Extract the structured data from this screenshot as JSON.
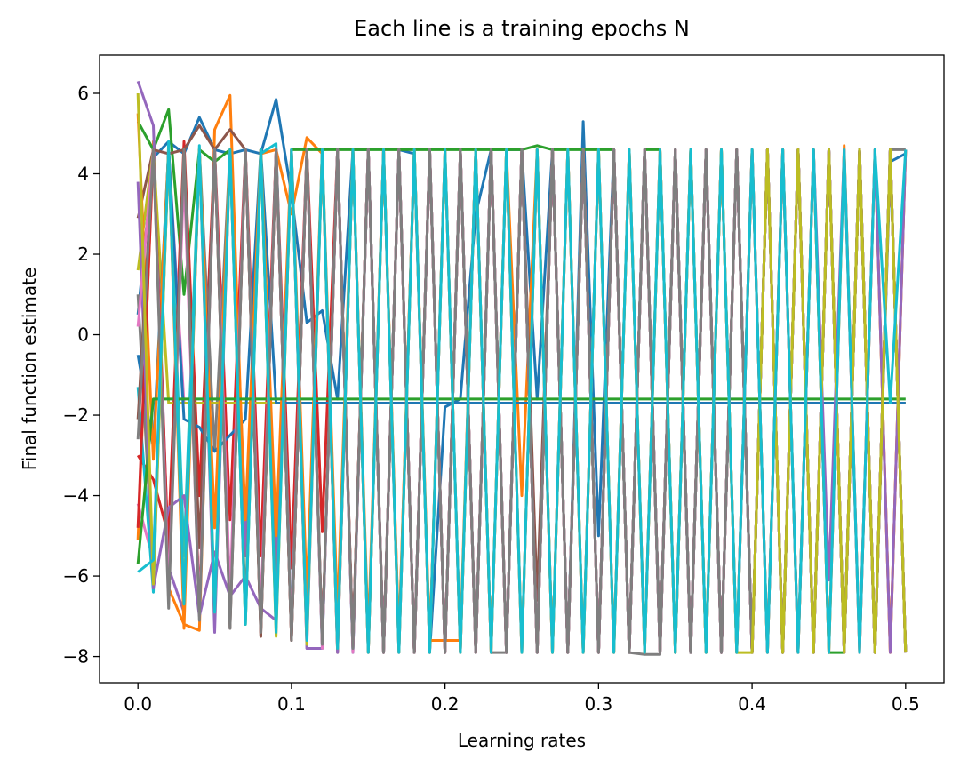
{
  "chart_data": {
    "type": "line",
    "title": "Each line is a training epochs N",
    "xlabel": "Learning rates",
    "ylabel": "Final function estimate",
    "xlim": [
      -0.025,
      0.525
    ],
    "ylim": [
      -8.65,
      6.95
    ],
    "xticks": [
      {
        "value": 0.0,
        "label": "0.0"
      },
      {
        "value": 0.1,
        "label": "0.1"
      },
      {
        "value": 0.2,
        "label": "0.2"
      },
      {
        "value": 0.3,
        "label": "0.3"
      },
      {
        "value": 0.4,
        "label": "0.4"
      },
      {
        "value": 0.5,
        "label": "0.5"
      }
    ],
    "yticks": [
      {
        "value": 6,
        "label": "6"
      },
      {
        "value": 4,
        "label": "4"
      },
      {
        "value": 2,
        "label": "2"
      },
      {
        "value": 0,
        "label": "0"
      },
      {
        "value": -2,
        "label": "−2"
      },
      {
        "value": -4,
        "label": "−4"
      },
      {
        "value": -6,
        "label": "−6"
      },
      {
        "value": -8,
        "label": "−8"
      }
    ],
    "grid": false,
    "legend": "none",
    "x": [
      0.0,
      0.01,
      0.02,
      0.03,
      0.04,
      0.05,
      0.06,
      0.07,
      0.08,
      0.09,
      0.1,
      0.11,
      0.12,
      0.13,
      0.14,
      0.15,
      0.16,
      0.17,
      0.18,
      0.19,
      0.2,
      0.21,
      0.22,
      0.23,
      0.24,
      0.25,
      0.26,
      0.27,
      0.28,
      0.29,
      0.3,
      0.31,
      0.32,
      0.33,
      0.34,
      0.35,
      0.36,
      0.37,
      0.38,
      0.39,
      0.4,
      0.41,
      0.42,
      0.43,
      0.44,
      0.45,
      0.46,
      0.47,
      0.48,
      0.49,
      0.5
    ],
    "series": [
      {
        "color": "#1f77b4",
        "values": [
          0.5,
          4.4,
          4.8,
          4.5,
          5.4,
          4.6,
          4.5,
          4.6,
          4.5,
          5.85,
          3.5,
          0.3,
          0.6,
          -1.6,
          4.6,
          4.6,
          -7.9,
          4.6,
          4.5,
          -7.9,
          -1.8,
          -1.6,
          3.0,
          4.6,
          4.6,
          4.6,
          -1.6,
          4.6,
          -7.9,
          5.3,
          -5.0,
          4.6,
          -7.9,
          4.6,
          -7.9,
          4.6,
          -7.9,
          4.6,
          -7.9,
          4.6,
          -7.9,
          4.6,
          -7.9,
          4.6,
          -7.9,
          4.6,
          -7.9,
          4.6,
          -7.9,
          4.3,
          4.5
        ]
      },
      {
        "color": "#ff7f0e",
        "values": [
          -5.1,
          4.8,
          -6.3,
          -7.2,
          -7.35,
          5.1,
          5.95,
          -5.2,
          4.5,
          4.6,
          3.0,
          4.9,
          4.5,
          -7.9,
          4.6,
          -7.9,
          4.6,
          -7.6,
          4.6,
          -7.6,
          -7.6,
          -7.6,
          4.6,
          -7.9,
          4.6,
          -4.0,
          4.6,
          -7.9,
          4.6,
          -7.9,
          4.6,
          -7.9,
          4.6,
          -7.9,
          4.6,
          -7.9,
          4.6,
          -7.9,
          4.6,
          -7.9,
          4.6,
          -7.9,
          4.6,
          -7.9,
          4.6,
          -7.9,
          4.7,
          -7.9,
          4.6,
          -7.9,
          4.6
        ]
      },
      {
        "color": "#2ca02c",
        "values": [
          5.3,
          4.6,
          5.6,
          1.0,
          4.6,
          4.3,
          4.6,
          -5.5,
          4.6,
          -7.3,
          4.6,
          4.6,
          4.6,
          4.6,
          4.6,
          4.6,
          4.6,
          4.6,
          4.6,
          4.6,
          4.6,
          4.6,
          4.6,
          4.6,
          4.6,
          4.6,
          4.7,
          4.6,
          4.6,
          4.6,
          4.6,
          4.6,
          -7.9,
          4.6,
          4.6,
          -7.9,
          4.6,
          -7.9,
          4.6,
          -7.9,
          4.6,
          -7.9,
          4.6,
          -7.9,
          4.6,
          -7.9,
          -7.9,
          4.6,
          -7.9,
          4.6,
          -7.9
        ]
      },
      {
        "color": "#d62728",
        "values": [
          -3.0,
          -3.6,
          -5.0,
          4.8,
          -4.0,
          4.6,
          -4.6,
          4.6,
          -5.5,
          4.6,
          -5.8,
          4.6,
          -4.9,
          4.6,
          -7.7,
          4.6,
          -7.9,
          4.6,
          -7.9,
          4.6,
          -7.9,
          4.6,
          -7.9,
          4.6,
          -7.9,
          4.6,
          -7.9,
          4.6,
          -7.9,
          4.6,
          -7.9,
          4.6,
          -7.9,
          4.6,
          -7.9,
          4.6,
          -7.9,
          4.6,
          -7.9,
          4.6,
          -7.9,
          4.6,
          -7.9,
          4.6,
          -7.9,
          4.6,
          -7.9,
          4.6,
          -7.9,
          4.6,
          -7.9
        ]
      },
      {
        "color": "#9467bd",
        "values": [
          6.3,
          5.2,
          -5.8,
          -6.9,
          4.6,
          -7.4,
          4.6,
          -5.5,
          4.6,
          -6.0,
          4.6,
          -7.8,
          -7.8,
          4.6,
          -7.9,
          4.6,
          -7.9,
          4.6,
          -7.9,
          4.6,
          -7.9,
          4.6,
          -7.9,
          4.6,
          -7.9,
          4.6,
          -7.9,
          4.6,
          -7.9,
          4.6,
          -7.9,
          4.6,
          -7.9,
          4.6,
          -7.9,
          4.6,
          -7.9,
          4.6,
          -7.9,
          4.6,
          -7.9,
          4.6,
          -7.9,
          4.6,
          -7.9,
          4.6,
          -7.9,
          4.6,
          -7.9,
          4.6,
          -7.9
        ]
      },
      {
        "color": "#8c564b",
        "values": [
          2.9,
          4.6,
          4.5,
          4.6,
          5.2,
          4.6,
          5.1,
          4.6,
          -7.5,
          4.6,
          -7.6,
          4.6,
          -7.6,
          4.6,
          -7.7,
          4.6,
          -7.8,
          4.6,
          -7.9,
          4.6,
          -7.9,
          4.6,
          -7.9,
          4.6,
          -7.9,
          4.6,
          -6.6,
          4.6,
          -7.9,
          4.6,
          -7.9,
          4.6,
          -7.9,
          4.6,
          -7.9,
          4.6,
          -7.9,
          4.6,
          -7.9,
          4.6,
          -7.9,
          4.6,
          -7.9,
          4.6,
          -7.9,
          4.6,
          -7.9,
          4.6,
          -7.9,
          4.6,
          -7.9
        ]
      },
      {
        "color": "#e377c2",
        "values": [
          -4.2,
          -5.6,
          4.6,
          -1.7,
          -1.7,
          -1.7,
          -1.7,
          -1.7,
          -1.7,
          -1.7,
          -1.7,
          -1.7,
          -1.7,
          -1.7,
          -1.7,
          -1.7,
          -1.7,
          -1.7,
          -1.7,
          -1.7,
          -1.7,
          -1.7,
          -1.7,
          -1.7,
          -1.7,
          -1.7,
          -1.7,
          -1.7,
          -1.7,
          -1.7,
          -1.7,
          -1.7,
          -1.7,
          -1.7,
          -1.7,
          -1.7,
          -1.7,
          -1.7,
          -1.7,
          -1.7,
          -1.7,
          -1.7,
          -1.7,
          -1.7,
          -1.7,
          -1.7,
          -1.7,
          -1.7,
          -1.7,
          -1.7,
          -1.7
        ]
      },
      {
        "color": "#7f7f7f",
        "values": [
          1.0,
          -6.0,
          4.6,
          -6.8,
          4.6,
          -2.9,
          4.6,
          -6.8,
          4.6,
          -7.0,
          4.6,
          -7.4,
          4.6,
          -7.9,
          4.6,
          -7.9,
          4.6,
          -7.9,
          4.6,
          -7.9,
          4.6,
          -7.9,
          4.6,
          -7.9,
          -7.9,
          4.6,
          -7.9,
          4.6,
          -7.9,
          4.6,
          -7.9,
          4.6,
          -7.9,
          -7.95,
          -7.95,
          4.6,
          -7.9,
          4.6,
          -7.9,
          4.6,
          -7.9,
          4.6,
          -7.9,
          4.6,
          -7.9,
          4.6,
          -7.9,
          4.6,
          -7.9,
          4.6,
          4.6
        ]
      },
      {
        "color": "#bcbd22",
        "values": [
          1.6,
          4.6,
          -1.7,
          -1.7,
          -1.7,
          -1.7,
          -1.7,
          -1.7,
          -1.7,
          -1.7,
          -1.7,
          -1.7,
          -1.7,
          -1.7,
          -1.7,
          -1.7,
          -1.7,
          -1.7,
          -1.7,
          -1.7,
          -1.7,
          -1.7,
          -1.7,
          -1.7,
          -1.7,
          -1.7,
          -1.7,
          -1.7,
          -1.7,
          -1.7,
          -1.7,
          -1.7,
          -1.7,
          -1.7,
          -1.7,
          -1.7,
          -1.7,
          -1.7,
          -1.7,
          -1.7,
          -1.7,
          -1.7,
          -1.7,
          -1.7,
          -1.7,
          -1.7,
          -1.7,
          -1.7,
          -1.7,
          -1.7,
          -1.7
        ]
      },
      {
        "color": "#17becf",
        "values": [
          -1.3,
          -6.4,
          4.8,
          -5.5,
          4.7,
          -6.7,
          4.6,
          -7.2,
          4.5,
          4.75,
          -7.3,
          4.6,
          -7.8,
          4.6,
          -7.9,
          4.6,
          -7.9,
          4.6,
          -7.9,
          4.6,
          -7.9,
          4.6,
          -7.9,
          4.6,
          -7.9,
          4.6,
          -7.9,
          4.6,
          -7.9,
          4.6,
          -7.9,
          4.6,
          -7.9,
          4.6,
          -7.9,
          4.6,
          -7.9,
          4.6,
          -7.9,
          4.6,
          -7.9,
          4.6,
          -7.9,
          4.6,
          -7.9,
          4.6,
          -7.9,
          4.6,
          -7.9,
          4.6,
          -7.9
        ]
      },
      {
        "color": "#1f77b4",
        "values": [
          -0.5,
          -2.8,
          4.6,
          -2.1,
          -2.3,
          -2.9,
          -2.5,
          -2.1,
          4.6,
          -1.7,
          -1.7,
          -1.7,
          -1.7,
          -1.7,
          -1.7,
          -1.7,
          -1.7,
          -1.7,
          -1.7,
          -1.7,
          -1.7,
          -1.7,
          -1.7,
          -1.7,
          -1.7,
          -1.7,
          -1.7,
          -1.7,
          -1.7,
          -1.7,
          -1.7,
          -1.7,
          -1.7,
          -1.7,
          -1.7,
          -1.7,
          -1.7,
          -1.7,
          -1.7,
          -1.7,
          -1.7,
          -1.7,
          -1.7,
          -1.7,
          -1.7,
          -1.7,
          -1.7,
          -1.7,
          -1.7,
          -1.7,
          -1.7
        ]
      },
      {
        "color": "#ff7f0e",
        "values": [
          5.5,
          -3.1,
          4.6,
          -7.3,
          4.6,
          -4.8,
          4.6,
          -4.6,
          4.6,
          -5.0,
          4.6,
          -6.5,
          4.6,
          -7.0,
          4.6,
          -7.5,
          4.6,
          -7.6,
          4.6,
          -7.8,
          4.6,
          -7.9,
          4.6,
          -7.9,
          4.6,
          -7.9,
          4.6,
          -7.9,
          4.6,
          -7.9,
          4.6,
          -7.9,
          4.6,
          -7.9,
          4.6,
          -7.9,
          4.6,
          -7.9,
          4.6,
          -7.9,
          4.6,
          -7.9,
          4.6,
          -7.9,
          4.6,
          -7.9,
          4.6,
          -7.9,
          4.6,
          -7.9,
          4.6
        ]
      },
      {
        "color": "#2ca02c",
        "values": [
          -5.7,
          -1.6,
          -1.6,
          -1.6,
          -1.6,
          -1.6,
          -1.6,
          -1.6,
          -1.6,
          -1.6,
          -1.6,
          -1.6,
          -1.6,
          -1.6,
          -1.6,
          -1.6,
          -1.6,
          -1.6,
          -1.6,
          -1.6,
          -1.6,
          -1.6,
          -1.6,
          -1.6,
          -1.6,
          -1.6,
          -1.6,
          -1.6,
          -1.6,
          -1.6,
          -1.6,
          -1.6,
          -1.6,
          -1.6,
          -1.6,
          -1.6,
          -1.6,
          -1.6,
          -1.6,
          -1.6,
          -1.6,
          -1.6,
          -1.6,
          -1.6,
          -1.6,
          -1.6,
          -1.6,
          -1.6,
          -1.6,
          -1.6,
          -1.6
        ]
      },
      {
        "color": "#d62728",
        "values": [
          -4.8,
          4.6,
          -5.6,
          4.6,
          -6.8,
          4.6,
          -7.1,
          4.6,
          -7.4,
          4.6,
          -7.6,
          4.6,
          -7.7,
          4.6,
          -7.8,
          4.6,
          -7.9,
          4.6,
          -7.9,
          4.6,
          -7.9,
          4.6,
          -7.9,
          4.6,
          -7.9,
          4.6,
          -7.9,
          4.6,
          -7.9,
          4.6,
          -7.9,
          4.6,
          -7.9,
          4.6,
          -7.9,
          4.6,
          -7.9,
          4.6,
          -7.9,
          4.6,
          -7.9,
          4.6,
          -7.9,
          4.6,
          -7.9,
          4.6,
          -7.9,
          4.6,
          -7.9,
          4.6,
          -7.9
        ]
      },
      {
        "color": "#9467bd",
        "values": [
          3.8,
          -6.3,
          -4.3,
          -4.0,
          -7.0,
          -5.4,
          -6.5,
          -6.0,
          -6.8,
          -7.1,
          4.6,
          -7.8,
          4.6,
          -7.9,
          4.6,
          -7.9,
          4.6,
          -7.9,
          4.6,
          -7.9,
          4.6,
          -7.9,
          4.6,
          -7.9,
          4.6,
          -7.9,
          4.6,
          -7.9,
          4.6,
          -7.9,
          4.6,
          -7.9,
          4.6,
          -7.9,
          4.6,
          -7.9,
          4.6,
          -7.9,
          4.6,
          -7.9,
          4.6,
          -7.9,
          4.6,
          -7.9,
          4.6,
          -6.1,
          4.6,
          -7.9,
          4.6,
          -7.9,
          4.6
        ]
      },
      {
        "color": "#8c564b",
        "values": [
          -2.1,
          4.6,
          -6.2,
          4.6,
          -5.3,
          4.6,
          -7.3,
          4.6,
          -7.5,
          4.6,
          -7.6,
          4.6,
          -7.7,
          4.6,
          -7.8,
          4.6,
          -7.9,
          4.6,
          -7.9,
          4.6,
          -7.9,
          4.6,
          -7.9,
          4.6,
          -7.9,
          4.6,
          -7.9,
          4.6,
          -7.9,
          4.6,
          -7.9,
          4.6,
          -7.9,
          4.6,
          -7.9,
          4.6,
          -7.9,
          4.6,
          -7.9,
          4.6,
          -7.9,
          4.6,
          -7.9,
          4.6,
          -7.9,
          4.6,
          -7.9,
          4.6,
          -7.9,
          4.6,
          -7.9
        ]
      },
      {
        "color": "#e377c2",
        "values": [
          0.2,
          4.6,
          -6.4,
          4.0,
          -6.9,
          4.6,
          -6.5,
          4.6,
          -7.0,
          4.6,
          -7.4,
          4.6,
          -7.8,
          4.6,
          -7.9,
          4.6,
          -7.9,
          4.6,
          -7.9,
          4.6,
          -7.9,
          4.6,
          -7.9,
          4.6,
          -7.9,
          4.6,
          -7.9,
          4.6,
          -7.9,
          4.6,
          -7.9,
          4.6,
          -7.9,
          4.6,
          -7.9,
          4.6,
          -7.9,
          4.6,
          -7.9,
          4.6,
          -7.9,
          4.6,
          -7.9,
          4.6,
          -7.9,
          4.6,
          -7.9,
          4.6,
          -7.9,
          4.6,
          -7.9
        ]
      },
      {
        "color": "#7f7f7f",
        "values": [
          -2.6,
          4.6,
          -6.8,
          4.6,
          -7.1,
          4.6,
          -7.3,
          4.6,
          -7.4,
          4.6,
          -7.6,
          4.6,
          -7.7,
          4.6,
          -7.8,
          4.6,
          -7.9,
          4.6,
          -7.9,
          4.6,
          -7.9,
          4.6,
          -7.9,
          4.6,
          -7.9,
          4.6,
          -7.9,
          4.6,
          -7.9,
          4.6,
          -7.9,
          4.6,
          -7.9,
          4.6,
          -7.9,
          4.6,
          -7.9,
          4.6,
          -7.9,
          4.6,
          -7.9,
          4.6,
          -7.9,
          4.6,
          -7.9,
          4.6,
          -7.9,
          4.6,
          -7.9,
          4.6,
          -7.9
        ]
      },
      {
        "color": "#bcbd22",
        "values": [
          6.0,
          -6.2,
          4.6,
          -6.6,
          4.6,
          -6.9,
          4.6,
          -7.2,
          4.6,
          -7.5,
          4.6,
          -7.7,
          4.6,
          -7.8,
          4.6,
          -7.9,
          4.6,
          -7.9,
          4.6,
          -7.9,
          4.6,
          -7.9,
          4.6,
          -7.9,
          4.6,
          -7.9,
          4.6,
          -7.9,
          4.6,
          -7.9,
          4.6,
          -7.9,
          4.6,
          -7.9,
          4.6,
          -7.9,
          4.6,
          -7.9,
          4.6,
          -7.9,
          -7.9,
          4.6,
          -7.9,
          4.6,
          -7.9,
          4.6,
          -7.9,
          4.6,
          -7.9,
          4.6,
          -7.9
        ]
      },
      {
        "color": "#17becf",
        "values": [
          -5.9,
          -5.6,
          4.6,
          -6.7,
          4.6,
          -6.9,
          4.6,
          -7.2,
          4.6,
          -7.4,
          4.6,
          -7.6,
          4.6,
          -7.8,
          4.6,
          -7.9,
          4.6,
          -7.9,
          4.6,
          -7.9,
          4.6,
          -7.9,
          4.6,
          -7.9,
          4.6,
          -7.9,
          4.6,
          -7.9,
          4.6,
          -7.9,
          4.6,
          -7.9,
          4.6,
          -7.9,
          4.6,
          -7.9,
          4.6,
          -7.9,
          4.6,
          -7.9,
          4.6,
          -7.9,
          4.6,
          -7.9,
          4.6,
          -7.9,
          4.6,
          -7.9,
          4.6,
          -1.7,
          4.6
        ]
      }
    ]
  }
}
